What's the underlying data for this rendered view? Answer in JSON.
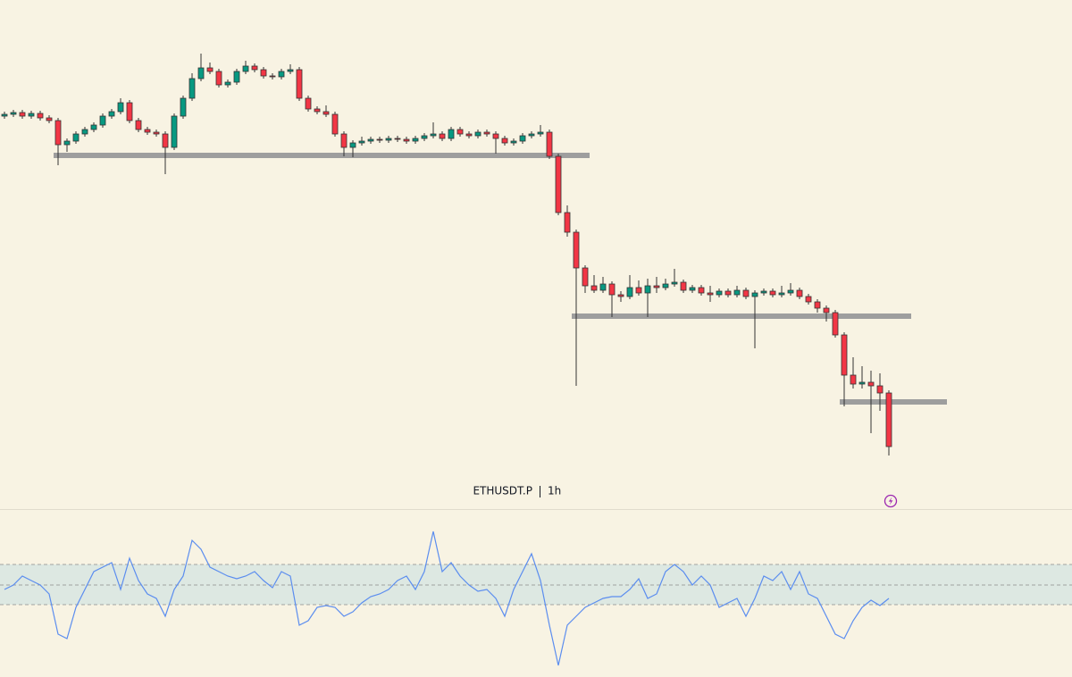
{
  "chart_data": {
    "type": "candlestick",
    "symbol": "ETHUSDT.P",
    "interval": "1h",
    "up_color": "#089981",
    "down_color": "#f23645",
    "level_color": "#9e9e9e",
    "xlim": [
      0,
      120
    ],
    "ylim": [
      2160,
      2700
    ],
    "open": [
      2570,
      2572,
      2574,
      2570,
      2573,
      2568,
      2565,
      2538,
      2542,
      2550,
      2555,
      2560,
      2570,
      2575,
      2585,
      2565,
      2555,
      2552,
      2550,
      2535,
      2570,
      2590,
      2612,
      2624,
      2620,
      2605,
      2608,
      2620,
      2626,
      2622,
      2615,
      2614,
      2620,
      2622,
      2590,
      2578,
      2575,
      2572,
      2550,
      2535,
      2540,
      2542,
      2544,
      2543,
      2545,
      2544,
      2542,
      2545,
      2548,
      2550,
      2545,
      2555,
      2550,
      2548,
      2552,
      2550,
      2545,
      2540,
      2542,
      2548,
      2550,
      2552,
      2525,
      2462,
      2440,
      2400,
      2380,
      2375,
      2382,
      2370,
      2368,
      2378,
      2372,
      2380,
      2378,
      2382,
      2384,
      2375,
      2378,
      2372,
      2370,
      2374,
      2370,
      2375,
      2368,
      2372,
      2374,
      2370,
      2372,
      2375,
      2368,
      2362,
      2355,
      2350,
      2325,
      2280,
      2270,
      2272,
      2268,
      2260
    ],
    "high": [
      2575,
      2577,
      2577,
      2576,
      2576,
      2571,
      2568,
      2545,
      2553,
      2558,
      2563,
      2573,
      2578,
      2590,
      2588,
      2568,
      2558,
      2555,
      2553,
      2573,
      2593,
      2618,
      2640,
      2630,
      2623,
      2611,
      2623,
      2632,
      2629,
      2625,
      2618,
      2623,
      2628,
      2625,
      2593,
      2581,
      2582,
      2575,
      2553,
      2543,
      2547,
      2547,
      2547,
      2548,
      2548,
      2547,
      2548,
      2551,
      2563,
      2553,
      2558,
      2558,
      2553,
      2555,
      2555,
      2553,
      2548,
      2545,
      2551,
      2553,
      2560,
      2555,
      2528,
      2470,
      2443,
      2403,
      2392,
      2390,
      2385,
      2374,
      2392,
      2386,
      2388,
      2390,
      2388,
      2399,
      2387,
      2381,
      2381,
      2380,
      2377,
      2377,
      2380,
      2378,
      2375,
      2377,
      2377,
      2380,
      2383,
      2378,
      2371,
      2365,
      2358,
      2353,
      2328,
      2300,
      2290,
      2285,
      2282,
      2263
    ],
    "low": [
      2567,
      2569,
      2567,
      2567,
      2565,
      2562,
      2515,
      2530,
      2539,
      2547,
      2552,
      2557,
      2567,
      2572,
      2562,
      2552,
      2549,
      2547,
      2505,
      2532,
      2567,
      2587,
      2609,
      2617,
      2602,
      2602,
      2605,
      2617,
      2619,
      2612,
      2611,
      2611,
      2617,
      2587,
      2575,
      2572,
      2569,
      2547,
      2525,
      2524,
      2537,
      2539,
      2540,
      2540,
      2541,
      2539,
      2539,
      2542,
      2545,
      2542,
      2542,
      2547,
      2545,
      2545,
      2547,
      2528,
      2537,
      2537,
      2539,
      2545,
      2547,
      2522,
      2459,
      2435,
      2268,
      2372,
      2372,
      2372,
      2345,
      2362,
      2365,
      2369,
      2345,
      2372,
      2375,
      2379,
      2372,
      2372,
      2369,
      2362,
      2367,
      2367,
      2367,
      2365,
      2310,
      2369,
      2367,
      2367,
      2369,
      2365,
      2359,
      2350,
      2340,
      2322,
      2245,
      2265,
      2265,
      2215,
      2240,
      2190
    ],
    "close": [
      2572,
      2574,
      2570,
      2573,
      2568,
      2565,
      2538,
      2542,
      2550,
      2555,
      2560,
      2570,
      2575,
      2585,
      2565,
      2555,
      2552,
      2550,
      2535,
      2570,
      2590,
      2612,
      2624,
      2620,
      2605,
      2608,
      2620,
      2626,
      2622,
      2615,
      2614,
      2620,
      2622,
      2590,
      2578,
      2575,
      2572,
      2550,
      2535,
      2540,
      2542,
      2544,
      2543,
      2545,
      2544,
      2542,
      2545,
      2548,
      2550,
      2545,
      2555,
      2550,
      2548,
      2552,
      2550,
      2545,
      2540,
      2542,
      2548,
      2550,
      2552,
      2525,
      2462,
      2440,
      2400,
      2380,
      2375,
      2382,
      2370,
      2368,
      2378,
      2372,
      2380,
      2378,
      2382,
      2384,
      2375,
      2378,
      2372,
      2370,
      2374,
      2370,
      2375,
      2368,
      2372,
      2374,
      2370,
      2372,
      2375,
      2368,
      2362,
      2355,
      2350,
      2325,
      2280,
      2270,
      2272,
      2268,
      2260,
      2200
    ],
    "levels": [
      {
        "value": 2526,
        "from": 6,
        "to": 66
      },
      {
        "value": 2346,
        "from": 64,
        "to": 102
      },
      {
        "value": 2250,
        "from": 94,
        "to": 106
      }
    ],
    "oscillator": {
      "color": "#5b8def",
      "ylim": [
        0,
        180
      ],
      "band": [
        81,
        126
      ],
      "midline": 103,
      "values": [
        98,
        103,
        113,
        108,
        103,
        93,
        48,
        43,
        78,
        98,
        118,
        123,
        128,
        98,
        133,
        108,
        93,
        88,
        68,
        98,
        113,
        153,
        143,
        123,
        118,
        113,
        110,
        113,
        118,
        108,
        100,
        118,
        113,
        58,
        63,
        78,
        80,
        78,
        68,
        73,
        83,
        90,
        93,
        98,
        108,
        113,
        98,
        118,
        163,
        118,
        128,
        113,
        103,
        96,
        98,
        88,
        68,
        98,
        118,
        138,
        108,
        58,
        13,
        58,
        68,
        78,
        83,
        88,
        90,
        90,
        98,
        110,
        88,
        93,
        118,
        126,
        118,
        103,
        113,
        103,
        78,
        83,
        88,
        68,
        88,
        113,
        108,
        118,
        98,
        118,
        93,
        88,
        68,
        48,
        43,
        63,
        78,
        86,
        80,
        88
      ]
    }
  }
}
